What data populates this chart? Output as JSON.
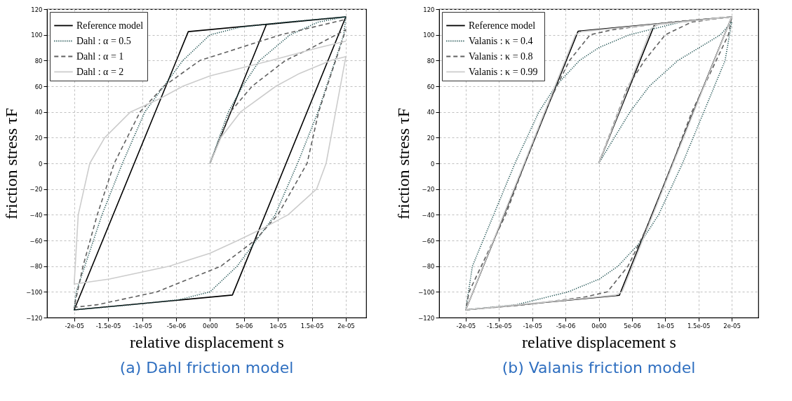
{
  "chart_data": [
    {
      "type": "line",
      "title": "(a) Dahl friction model",
      "xlabel": "relative displacement s",
      "ylabel": "friction stress τF",
      "grid": true,
      "legend": "top left",
      "xlim": [
        -2.4e-05,
        2.3e-05
      ],
      "ylim": [
        -120,
        120
      ],
      "xticks": [
        {
          "value": -2e-05,
          "label": "-2e-05"
        },
        {
          "value": -1.5e-05,
          "label": "-1.5e-05"
        },
        {
          "value": -1e-05,
          "label": "-1e-05"
        },
        {
          "value": -5e-06,
          "label": "-5e-06"
        },
        {
          "value": 0,
          "label": "0e00"
        },
        {
          "value": 5e-06,
          "label": "5e-06"
        },
        {
          "value": 1e-05,
          "label": "1e-05"
        },
        {
          "value": 1.5e-05,
          "label": "1.5e-05"
        },
        {
          "value": 2e-05,
          "label": "2e-05"
        }
      ],
      "yticks": [
        -120,
        -100,
        -80,
        -60,
        -40,
        -20,
        0,
        20,
        40,
        60,
        80,
        100,
        120
      ],
      "series": [
        {
          "name": "Reference model",
          "color": "#000000",
          "line_style": "solid",
          "x": [
            0,
            8.3e-06,
            2e-05,
            3.3e-06,
            -2e-05,
            -3.2e-06,
            2e-05
          ],
          "values": [
            0,
            108,
            114,
            -102.5,
            -114,
            102.5,
            114
          ]
        },
        {
          "name": "Dahl :  α = 0.5",
          "color": "#1f5252",
          "line_style": "dotted",
          "x": [
            0,
            2.7e-06,
            4.8e-06,
            7.3e-06,
            1.18e-05,
            1.6e-05,
            2e-05,
            1.97e-05,
            1.59e-05,
            1.29e-05,
            9.6e-06,
            6.8e-06,
            4e-06,
            0,
            -4.5e-06,
            -1.15e-05,
            -2e-05,
            -1.97e-05,
            -1.59e-05,
            -1.29e-05,
            -9.6e-06,
            -6.8e-06,
            -4e-06,
            0,
            4.5e-06,
            1.15e-05,
            2e-05
          ],
          "values": [
            0,
            40,
            60,
            80,
            100,
            110,
            114,
            100,
            40,
            0,
            -40,
            -60,
            -80,
            -100,
            -106,
            -110,
            -114,
            -100,
            -40,
            0,
            40,
            60,
            80,
            100,
            106,
            110,
            114
          ]
        },
        {
          "name": "Dahl :  α = 1",
          "color": "#606060",
          "line_style": "dashed",
          "x": [
            0,
            3e-06,
            6.2e-06,
            1.11e-05,
            1.5e-05,
            2e-05,
            1.6e-05,
            1.43e-05,
            1e-05,
            6.6e-06,
            1.6e-06,
            -7.8e-06,
            -1.66e-05,
            -2e-05,
            -1.87e-05,
            -1.66e-05,
            -1.41e-05,
            -1.03e-05,
            -6.8e-06,
            -1.5e-06,
            1.04e-05,
            2e-05
          ],
          "values": [
            0,
            40,
            60,
            80,
            90,
            104,
            40,
            0,
            -40,
            -60,
            -80,
            -100,
            -110,
            -112,
            -80,
            -40,
            0,
            40,
            60,
            80,
            100,
            112
          ]
        },
        {
          "name": "Dahl :  α = 2",
          "color": "#cccccc",
          "line_style": "solid",
          "x": [
            0,
            1.6e-06,
            4.5e-06,
            9.7e-06,
            1.32e-05,
            1.78e-05,
            2e-05,
            1.85e-05,
            1.71e-05,
            1.57e-05,
            1.15e-05,
            8e-06,
            4.1e-06,
            0,
            -6e-06,
            -1.48e-05,
            -2e-05,
            -1.94e-05,
            -1.77e-05,
            -1.55e-05,
            -1.17e-05,
            -7.5e-06,
            -4e-06,
            0,
            9e-06,
            1.6e-05,
            2e-05
          ],
          "values": [
            0,
            20,
            40,
            60,
            70,
            80,
            83,
            40,
            0,
            -20,
            -40,
            -50,
            -60,
            -70,
            -80,
            -90,
            -94,
            -40,
            0,
            20,
            40,
            50,
            60,
            68,
            80,
            90,
            95
          ]
        }
      ]
    },
    {
      "type": "line",
      "title": "(b) Valanis friction model",
      "xlabel": "relative displacement s",
      "ylabel": "friction stress τF",
      "grid": true,
      "legend": "top left",
      "xlim": [
        -2.4e-05,
        2.4e-05
      ],
      "ylim": [
        -120,
        120
      ],
      "xticks": [
        {
          "value": -2e-05,
          "label": "-2e-05"
        },
        {
          "value": -1.5e-05,
          "label": "-1.5e-05"
        },
        {
          "value": -1e-05,
          "label": "-1e-05"
        },
        {
          "value": -5e-06,
          "label": "-5e-06"
        },
        {
          "value": 0,
          "label": "0e00"
        },
        {
          "value": 5e-06,
          "label": "5e-06"
        },
        {
          "value": 1e-05,
          "label": "1e-05"
        },
        {
          "value": 1.5e-05,
          "label": "1.5e-05"
        },
        {
          "value": 2e-05,
          "label": "2e-05"
        }
      ],
      "yticks": [
        -120,
        -100,
        -80,
        -60,
        -40,
        -20,
        0,
        20,
        40,
        60,
        80,
        100,
        120
      ],
      "series": [
        {
          "name": "Reference model",
          "color": "#000000",
          "line_style": "solid",
          "x": [
            0,
            8.4e-06,
            2e-05,
            3.1e-06,
            -2e-05,
            -3.1e-06,
            2e-05
          ],
          "values": [
            0,
            108,
            114,
            -102.7,
            -114,
            102.8,
            114
          ]
        },
        {
          "name": "Valanis :  κ = 0.4",
          "color": "#1f5252",
          "line_style": "dotted",
          "x": [
            0,
            4.7e-06,
            7.6e-06,
            1.19e-05,
            1.83e-05,
            2e-05,
            1.9e-05,
            1.58e-05,
            1.26e-05,
            9e-06,
            6.5e-06,
            2.9e-06,
            1e-07,
            -4.6e-06,
            -1.24e-05,
            -2e-05,
            -1.9e-05,
            -1.58e-05,
            -1.26e-05,
            -9e-06,
            -6.5e-06,
            -2.9e-06,
            0,
            4.6e-06,
            1.24e-05,
            2e-05
          ],
          "values": [
            0,
            40,
            60,
            80,
            100,
            110,
            80,
            40,
            0,
            -40,
            -60,
            -80,
            -90,
            -100,
            -110,
            -114,
            -80,
            -40,
            0,
            40,
            60,
            80,
            90,
            100,
            110,
            114
          ]
        },
        {
          "name": "Valanis :  κ = 0.8",
          "color": "#606060",
          "line_style": "dashed",
          "x": [
            0,
            4.4e-06,
            6.9e-06,
            1e-05,
            1.4e-05,
            2e-05,
            1.95e-05,
            1.4e-05,
            1.11e-05,
            8.1e-06,
            6.3e-06,
            4.4e-06,
            1.3e-06,
            -2.1e-06,
            -1.1e-05,
            -2e-05,
            -1.95e-05,
            -1.4e-05,
            -1.11e-05,
            -8.1e-06,
            -6.3e-06,
            -4.4e-06,
            -1.3e-06,
            2.1e-06,
            1.1e-05,
            2e-05
          ],
          "values": [
            0,
            60,
            80,
            100,
            110,
            114,
            100,
            40,
            0,
            -40,
            -60,
            -80,
            -100,
            -104,
            -110,
            -114,
            -100,
            -40,
            0,
            40,
            60,
            80,
            100,
            104,
            110,
            114
          ]
        },
        {
          "name": "Valanis :  κ = 0.99",
          "color": "#cccccc",
          "line_style": "solid",
          "x": [
            0,
            7.9e-06,
            9e-06,
            2e-05,
            3.5e-06,
            2.6e-06,
            -2e-05,
            -3.5e-06,
            -2.6e-06,
            2e-05
          ],
          "values": [
            0,
            105,
            108,
            114,
            -100,
            -102.5,
            -114,
            100,
            102.5,
            114
          ]
        }
      ]
    }
  ]
}
